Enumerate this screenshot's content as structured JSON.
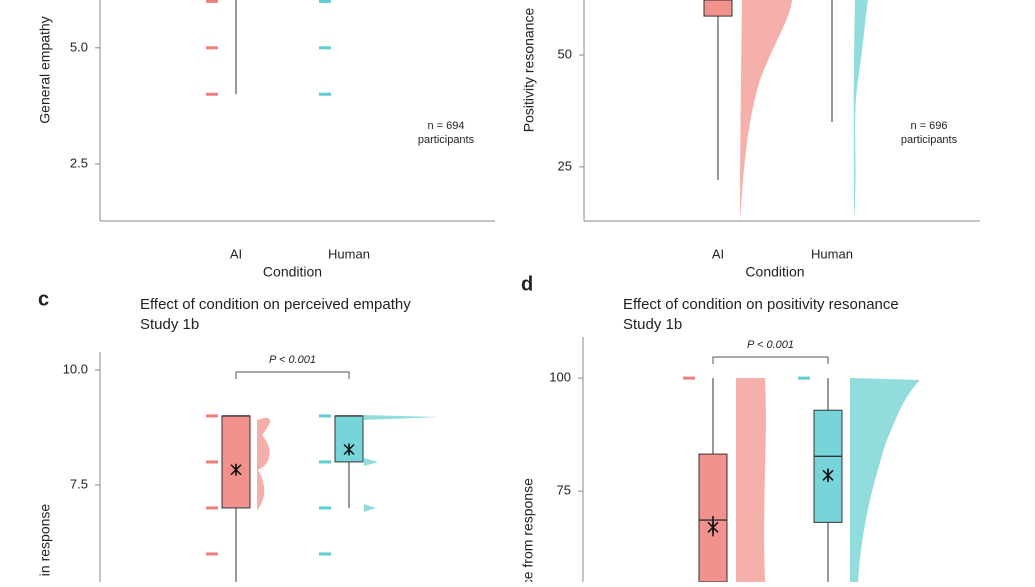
{
  "chart_data": [
    {
      "type": "box",
      "y_label": "General empathy",
      "x_label": "Condition",
      "categories": [
        "AI",
        "Human"
      ],
      "colors": [
        "#ef7f79",
        "#5fcdd2"
      ],
      "ylim": [
        1.27,
        6.03
      ],
      "yticks": [
        2.5,
        {
          "value": 5,
          "label": "5.0"
        }
      ],
      "whisker_low": [
        4.0,
        null
      ],
      "q1": [
        null,
        null
      ],
      "median": [
        null,
        null
      ],
      "q3": [
        null,
        null
      ],
      "whisker_high": [
        null,
        null
      ],
      "mean": [
        null,
        null
      ],
      "ci_low": [
        null,
        null
      ],
      "ci_high": [
        null,
        null
      ],
      "point_levels": [
        [
          4,
          5,
          6
        ],
        [
          4,
          5,
          6
        ]
      ],
      "annotation": [
        "n = 694",
        "participants"
      ]
    },
    {
      "type": "box",
      "y_label": "Positivity resonance",
      "x_label": "Condition",
      "categories": [
        "AI",
        "Human"
      ],
      "colors": [
        "#ef7f79",
        "#5fcdd2"
      ],
      "ylim": [
        12.9,
        62.3
      ],
      "yticks": [
        25,
        50
      ],
      "whisker_low": [
        22.1,
        35.0
      ],
      "q1": [
        58.7,
        null
      ],
      "median": [
        null,
        null
      ],
      "q3": [
        null,
        null
      ],
      "whisker_high": [
        null,
        null
      ],
      "mean": [
        null,
        null
      ],
      "ci_low": [
        null,
        null
      ],
      "ci_high": [
        null,
        null
      ],
      "point_levels": [
        [],
        []
      ],
      "annotation": [
        "n = 696",
        "participants"
      ]
    },
    {
      "type": "box",
      "panel": "c",
      "title": "Effect of condition on perceived empathy",
      "subtitle": "Study 1b",
      "y_label": "in response",
      "categories": [
        "AI",
        "Human"
      ],
      "colors": [
        "#ef7f79",
        "#5fcdd2"
      ],
      "ylim": [
        5.39,
        10.39
      ],
      "yticks": [
        7.5,
        {
          "value": 10,
          "label": "10.0"
        }
      ],
      "whisker_low": [
        null,
        7
      ],
      "q1": [
        7,
        8
      ],
      "median": [
        9,
        9
      ],
      "q3": [
        9,
        9
      ],
      "whisker_high": [
        null,
        null
      ],
      "mean": [
        7.83,
        8.27
      ],
      "ci_low": [
        7.74,
        8.19
      ],
      "ci_high": [
        7.93,
        8.35
      ],
      "point_levels": [
        [
          6,
          7,
          8,
          9
        ],
        [
          6,
          7,
          8,
          9
        ]
      ],
      "p_value": "P < 0.001"
    },
    {
      "type": "box",
      "panel": "d",
      "title": "Effect of condition on positivity resonance",
      "subtitle": "Study 1b",
      "y_label": "ance from response",
      "categories": [
        "AI",
        "Human"
      ],
      "colors": [
        "#ef7f79",
        "#5fcdd2"
      ],
      "ylim": [
        54.9,
        109.1
      ],
      "yticks": [
        75,
        100
      ],
      "whisker_low": [
        null,
        null
      ],
      "q1": [
        null,
        68.1
      ],
      "median": [
        68.6,
        82.7
      ],
      "q3": [
        83.2,
        92.9
      ],
      "whisker_high": [
        100,
        100
      ],
      "mean": [
        67,
        78.5
      ],
      "ci_low": [
        65,
        77
      ],
      "ci_high": [
        69.5,
        80
      ],
      "point_levels": [
        [
          100
        ],
        [
          100
        ]
      ],
      "p_value": "P < 0.001"
    }
  ]
}
